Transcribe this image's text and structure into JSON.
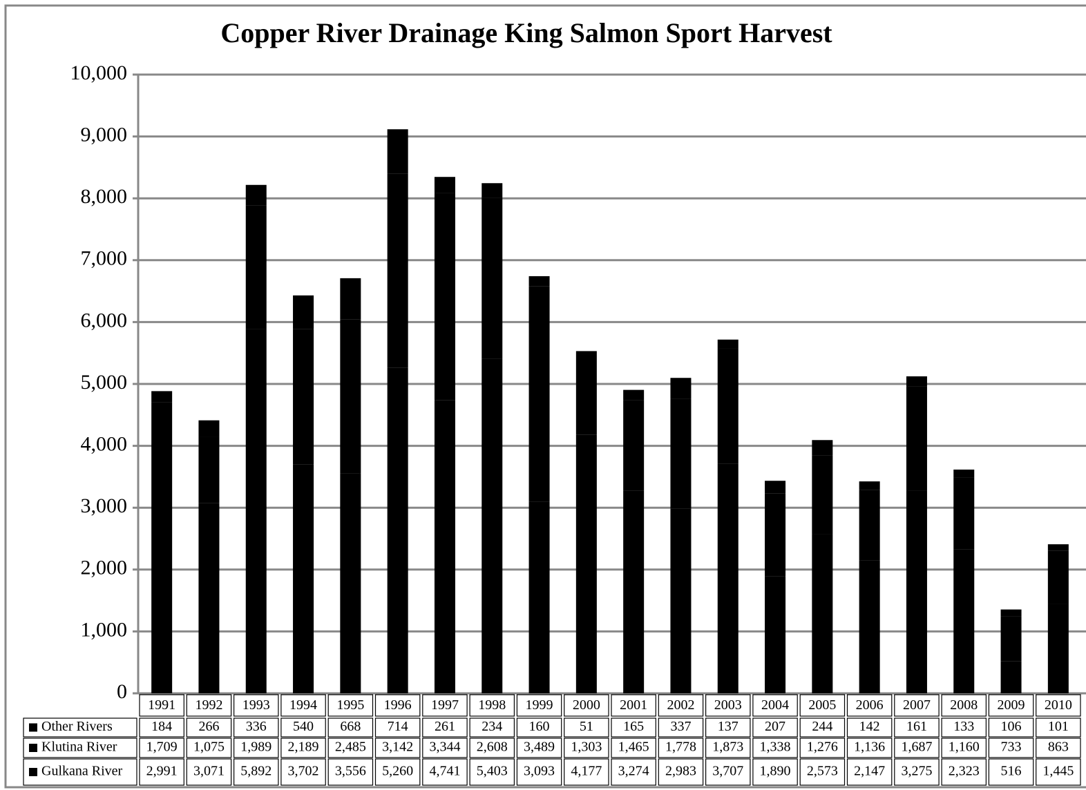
{
  "chart_data": {
    "type": "stacked_bar",
    "title": "Copper River Drainage King Salmon Sport Harvest",
    "categories": [
      "1991",
      "1992",
      "1993",
      "1994",
      "1995",
      "1996",
      "1997",
      "1998",
      "1999",
      "2000",
      "2001",
      "2002",
      "2003",
      "2004",
      "2005",
      "2006",
      "2007",
      "2008",
      "2009",
      "2010"
    ],
    "series": [
      {
        "name": "Other Rivers",
        "color": "#000000",
        "values": [
          184,
          266,
          336,
          540,
          668,
          714,
          261,
          234,
          160,
          51,
          165,
          337,
          137,
          207,
          244,
          142,
          161,
          133,
          106,
          101
        ]
      },
      {
        "name": "Klutina River",
        "color": "#000000",
        "values": [
          1709,
          1075,
          1989,
          2189,
          2485,
          3142,
          3344,
          2608,
          3489,
          1303,
          1465,
          1778,
          1873,
          1338,
          1276,
          1136,
          1687,
          1160,
          733,
          863
        ],
        "value_labels": [
          "1,709",
          "1,075",
          "1,989",
          "2,189",
          "2,485",
          "3,142",
          "3,344",
          "2,608",
          "3,489",
          "1,303",
          "1,465",
          "1,778",
          "1,873",
          "1,338",
          "1,276",
          "1,136",
          "1,687",
          "1,160",
          "733",
          "863"
        ]
      },
      {
        "name": "Gulkana River",
        "color": "#000000",
        "values": [
          2991,
          3071,
          5892,
          3702,
          3556,
          5260,
          4741,
          5403,
          3093,
          4177,
          3274,
          2983,
          3707,
          1890,
          2573,
          2147,
          3275,
          2323,
          516,
          1445
        ],
        "value_labels": [
          "2,991",
          "3,071",
          "5,892",
          "3,702",
          "3,556",
          "5,260",
          "4,741",
          "5,403",
          "3,093",
          "4,177",
          "3,274",
          "2,983",
          "3,707",
          "1,890",
          "2,573",
          "2,147",
          "3,275",
          "2,323",
          "516",
          "1,445"
        ]
      }
    ],
    "ylim": [
      0,
      10000
    ],
    "yticks": [
      0,
      {
        "value": 1000,
        "label": "1,000"
      },
      {
        "value": 2000,
        "label": "2,000"
      },
      {
        "value": 3000,
        "label": "3,000"
      },
      {
        "value": 4000,
        "label": "4,000"
      },
      {
        "value": 5000,
        "label": "5,000"
      },
      {
        "value": 6000,
        "label": "6,000"
      },
      {
        "value": 7000,
        "label": "7,000"
      },
      {
        "value": 8000,
        "label": "8,000"
      },
      {
        "value": 9000,
        "label": "9,000"
      },
      {
        "value": 10000,
        "label": "10,000"
      }
    ],
    "grid": true
  }
}
